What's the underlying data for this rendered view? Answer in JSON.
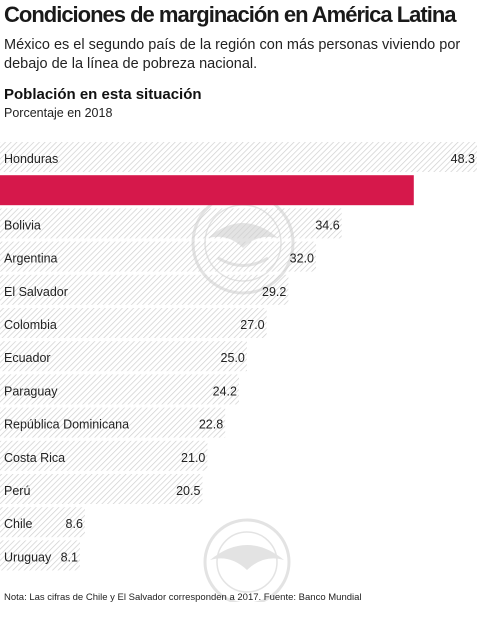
{
  "header": {
    "title": "Condiciones de marginación en América Latina",
    "subtitle": "México es el segundo país de la región con más personas viviendo por debajo de la línea de pobreza nacional.",
    "section_title": "Población en esta situación",
    "section_subtitle": "Porcentaje en 2018"
  },
  "footnote": "Nota: Las cifras de Chile y El Salvador corresponden a 2017. Fuente: Banco Mundial",
  "colors": {
    "highlight": "#d6184b",
    "hatch_line": "#cfcfcf",
    "text": "#222222"
  },
  "chart_data": {
    "type": "bar",
    "orientation": "horizontal",
    "categories": [
      "Honduras",
      "",
      "Bolivia",
      "Argentina",
      "El Salvador",
      "Colombia",
      "Ecuador",
      "Paraguay",
      "República Dominicana",
      "Costa Rica",
      "Perú",
      "Chile",
      "Uruguay"
    ],
    "values": [
      48.3,
      41.9,
      34.6,
      32.0,
      29.2,
      27.0,
      25.0,
      24.2,
      22.8,
      21.0,
      20.5,
      8.6,
      8.1
    ],
    "value_labels": [
      "48.3",
      "",
      "34.6",
      "32.0",
      "29.2",
      "27.0",
      "25.0",
      "24.2",
      "22.8",
      "21.0",
      "20.5",
      "8.6",
      "8.1"
    ],
    "highlighted_index": 1,
    "xlim": [
      0,
      48.3
    ]
  }
}
